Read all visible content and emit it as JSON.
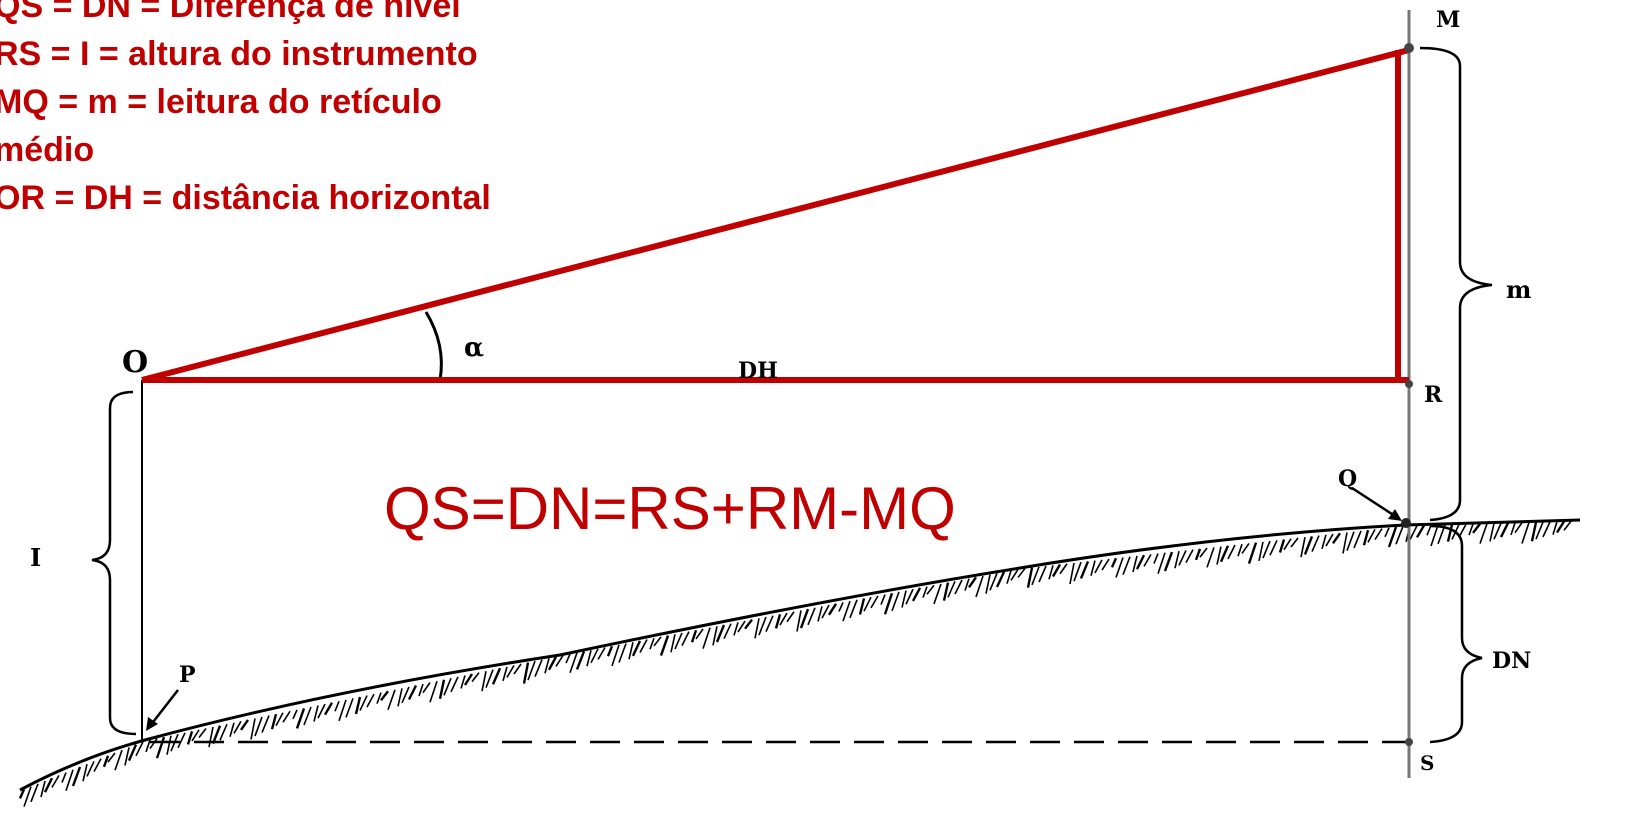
{
  "legend": {
    "line1": "QS = DN = Diferença de nível",
    "line2": "RS = I = altura do instrumento",
    "line3": "MQ = m = leitura do retículo",
    "line4": "médio",
    "line5": "OR = DH = distância horizontal"
  },
  "formula": "QS=DN=RS+RM-MQ",
  "labels": {
    "O": "O",
    "M": "M",
    "R": "R",
    "Q": "Q",
    "P": "P",
    "S": "S",
    "alpha": "α",
    "DH": "DH",
    "I": "I",
    "m": "m",
    "DN": "DN"
  },
  "colors": {
    "sight_lines": "#c00000",
    "legend_text": "#c00000",
    "drawing": "#000000"
  }
}
